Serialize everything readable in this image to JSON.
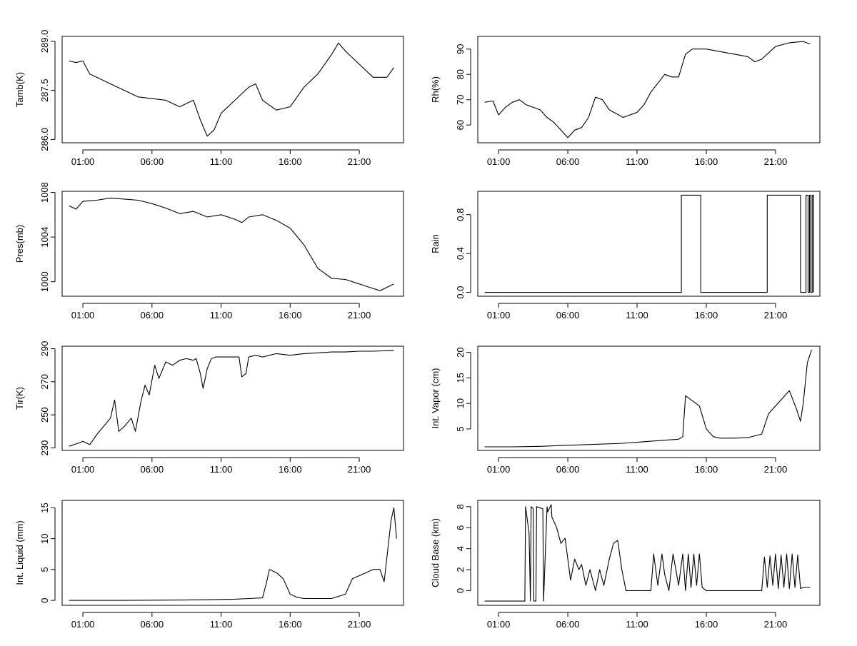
{
  "figure": {
    "description_none": ""
  },
  "chart_data": [
    {
      "type": "line",
      "ylabel": "Tamb(K)",
      "xlabel": "",
      "x_unit": "hours",
      "x_ticks": [
        1,
        6,
        11,
        16,
        21
      ],
      "x_tick_labels": [
        "01:00",
        "06:00",
        "11:00",
        "16:00",
        "21:00"
      ],
      "xlim": [
        -0.5,
        24.2
      ],
      "ylim": [
        285.9,
        289.15
      ],
      "y_ticks": [
        286.0,
        287.5,
        289.0
      ],
      "y_tick_labels": [
        "286.0",
        "287.5",
        "289.0"
      ],
      "series": [
        {
          "name": "Tamb",
          "x": [
            0,
            0.5,
            1,
            1.5,
            2,
            3,
            4,
            5,
            6,
            7,
            8,
            9,
            9.5,
            10,
            10.5,
            11,
            12,
            13,
            13.5,
            14,
            15,
            16,
            17,
            18,
            19,
            19.5,
            20,
            21,
            22,
            23,
            23.5
          ],
          "values": [
            288.4,
            288.35,
            288.4,
            288.0,
            287.9,
            287.7,
            287.5,
            287.3,
            287.25,
            287.2,
            287.0,
            287.2,
            286.6,
            286.1,
            286.3,
            286.8,
            287.2,
            287.6,
            287.7,
            287.2,
            286.9,
            287.0,
            287.6,
            288.0,
            288.6,
            288.95,
            288.7,
            288.3,
            287.9,
            287.9,
            288.2
          ]
        }
      ]
    },
    {
      "type": "line",
      "ylabel": "Rh(%)",
      "xlabel": "",
      "x_unit": "hours",
      "x_ticks": [
        1,
        6,
        11,
        16,
        21
      ],
      "x_tick_labels": [
        "01:00",
        "06:00",
        "11:00",
        "16:00",
        "21:00"
      ],
      "xlim": [
        -0.5,
        24.2
      ],
      "ylim": [
        53,
        95
      ],
      "y_ticks": [
        60,
        70,
        80,
        90
      ],
      "y_tick_labels": [
        "60",
        "70",
        "80",
        "90"
      ],
      "series": [
        {
          "name": "Rh",
          "x": [
            0,
            0.6,
            1,
            1.5,
            2,
            2.5,
            3,
            4,
            4.5,
            5,
            5.5,
            6,
            6.5,
            7,
            7.5,
            8,
            8.5,
            9,
            10,
            11,
            11.5,
            12,
            13,
            13.5,
            14,
            14.5,
            15,
            16,
            17,
            18,
            19,
            19.5,
            20,
            21,
            22,
            23,
            23.5
          ],
          "values": [
            69,
            69.5,
            64,
            67,
            69,
            70,
            68,
            66,
            63,
            61,
            58,
            55,
            58,
            59,
            63,
            71,
            70,
            66,
            63,
            65,
            68,
            73,
            80,
            79,
            79,
            88,
            90,
            90,
            89,
            88,
            87,
            85,
            86,
            91,
            92.5,
            93,
            92
          ]
        }
      ]
    },
    {
      "type": "line",
      "ylabel": "Pres(mb)",
      "xlabel": "",
      "x_unit": "hours",
      "x_ticks": [
        1,
        6,
        11,
        16,
        21
      ],
      "x_tick_labels": [
        "01:00",
        "06:00",
        "11:00",
        "16:00",
        "21:00"
      ],
      "xlim": [
        -0.5,
        24.2
      ],
      "ylim": [
        998.7,
        1008.1
      ],
      "y_ticks": [
        1000,
        1004,
        1008
      ],
      "y_tick_labels": [
        "1000",
        "1004",
        "1008"
      ],
      "series": [
        {
          "name": "Pres",
          "x": [
            0,
            0.5,
            1,
            2,
            3,
            4,
            5,
            6,
            7,
            8,
            9,
            10,
            11,
            12,
            12.5,
            13,
            14,
            15,
            16,
            17,
            18,
            19,
            20,
            21,
            22,
            22.5,
            23,
            23.5
          ],
          "values": [
            1006.8,
            1006.5,
            1007.2,
            1007.3,
            1007.5,
            1007.4,
            1007.3,
            1007.0,
            1006.6,
            1006.1,
            1006.3,
            1005.8,
            1006.0,
            1005.6,
            1005.3,
            1005.8,
            1006.0,
            1005.5,
            1004.8,
            1003.3,
            1001.2,
            1000.3,
            1000.2,
            999.8,
            999.4,
            999.2,
            999.5,
            999.8
          ]
        }
      ]
    },
    {
      "type": "line",
      "ylabel": "Rain",
      "xlabel": "",
      "x_unit": "hours",
      "x_ticks": [
        1,
        6,
        11,
        16,
        21
      ],
      "x_tick_labels": [
        "01:00",
        "06:00",
        "11:00",
        "16:00",
        "21:00"
      ],
      "xlim": [
        -0.5,
        24.2
      ],
      "ylim": [
        -0.04,
        1.04
      ],
      "y_ticks": [
        0.0,
        0.4,
        0.8
      ],
      "y_tick_labels": [
        "0.0",
        "0.4",
        "0.8"
      ],
      "series": [
        {
          "name": "Rain",
          "x": [
            0,
            14.2,
            14.2,
            15.6,
            15.6,
            20.4,
            20.4,
            22.8,
            22.8,
            23.2,
            23.2,
            23.35,
            23.35,
            23.45,
            23.45,
            23.55,
            23.55,
            23.65,
            23.65,
            23.75,
            23.75
          ],
          "values": [
            0,
            0,
            1,
            1,
            0,
            0,
            1,
            1,
            0,
            0,
            1,
            1,
            0,
            0,
            1,
            1,
            0,
            0,
            1,
            1,
            0
          ]
        }
      ]
    },
    {
      "type": "line",
      "ylabel": "Tir(K)",
      "xlabel": "",
      "x_unit": "hours",
      "x_ticks": [
        1,
        6,
        11,
        16,
        21
      ],
      "x_tick_labels": [
        "01:00",
        "06:00",
        "11:00",
        "16:00",
        "21:00"
      ],
      "xlim": [
        -0.5,
        24.2
      ],
      "ylim": [
        228.5,
        291.5
      ],
      "y_ticks": [
        230,
        250,
        270,
        290
      ],
      "y_tick_labels": [
        "230",
        "250",
        "270",
        "290"
      ],
      "series": [
        {
          "name": "Tir",
          "x": [
            0,
            0.7,
            1,
            1.5,
            2,
            2.5,
            3,
            3.3,
            3.6,
            4,
            4.5,
            4.8,
            5.2,
            5.5,
            5.8,
            6.2,
            6.5,
            7,
            7.5,
            8,
            8.5,
            9,
            9.2,
            9.5,
            9.7,
            10,
            10.3,
            10.6,
            11,
            11.5,
            12,
            12.3,
            12.5,
            12.8,
            13,
            13.5,
            14,
            14.5,
            15,
            16,
            17,
            18,
            19,
            20,
            21,
            22,
            23,
            23.5
          ],
          "values": [
            231,
            233,
            234,
            232,
            238,
            243,
            248,
            259,
            240,
            243,
            248,
            240,
            258,
            268,
            262,
            280,
            272,
            282,
            280,
            283,
            284,
            283,
            284,
            275,
            266,
            278,
            284,
            285,
            285,
            285,
            285,
            285,
            273,
            275,
            285,
            286,
            285,
            286,
            287,
            286,
            287,
            287.5,
            288,
            288,
            288.5,
            288.5,
            288.8,
            289
          ]
        }
      ]
    },
    {
      "type": "line",
      "ylabel": "Int. Vapor (cm)",
      "xlabel": "",
      "x_unit": "hours",
      "x_ticks": [
        1,
        6,
        11,
        16,
        21
      ],
      "x_tick_labels": [
        "01:00",
        "06:00",
        "11:00",
        "16:00",
        "21:00"
      ],
      "xlim": [
        -0.5,
        24.2
      ],
      "ylim": [
        0.8,
        21.2
      ],
      "y_ticks": [
        5,
        10,
        15,
        20
      ],
      "y_tick_labels": [
        "5",
        "10",
        "15",
        "20"
      ],
      "series": [
        {
          "name": "Int. Vapor",
          "x": [
            0,
            2,
            4,
            6,
            8,
            10,
            12,
            13,
            14,
            14.3,
            14.5,
            15,
            15.5,
            16,
            16.5,
            17,
            18,
            19,
            20,
            20.5,
            21,
            21.5,
            22,
            22.5,
            22.8,
            23,
            23.3,
            23.6
          ],
          "values": [
            1.5,
            1.5,
            1.6,
            1.8,
            2.0,
            2.2,
            2.6,
            2.8,
            3.0,
            3.5,
            11.5,
            10.5,
            9.5,
            5.0,
            3.5,
            3.2,
            3.2,
            3.3,
            4.0,
            8.0,
            9.5,
            11.0,
            12.5,
            9.0,
            6.5,
            10.0,
            18.0,
            20.5
          ]
        }
      ]
    },
    {
      "type": "line",
      "ylabel": "Int. Liquid (mm)",
      "xlabel": "",
      "x_unit": "hours",
      "x_ticks": [
        1,
        6,
        11,
        16,
        21
      ],
      "x_tick_labels": [
        "01:00",
        "06:00",
        "11:00",
        "16:00",
        "21:00"
      ],
      "xlim": [
        -0.5,
        24.2
      ],
      "ylim": [
        -0.8,
        16.2
      ],
      "y_ticks": [
        0,
        5,
        10,
        15
      ],
      "y_tick_labels": [
        "0",
        "5",
        "10",
        "15"
      ],
      "series": [
        {
          "name": "Int. Liquid",
          "x": [
            0,
            4,
            8,
            10,
            12,
            13,
            14,
            14.3,
            14.5,
            15,
            15.5,
            16,
            16.5,
            17,
            18,
            19,
            20,
            20.5,
            21,
            21.5,
            22,
            22.5,
            22.8,
            23,
            23.3,
            23.5,
            23.7
          ],
          "values": [
            0,
            0,
            0.05,
            0.1,
            0.2,
            0.3,
            0.4,
            3.0,
            5.0,
            4.5,
            3.5,
            1.0,
            0.5,
            0.3,
            0.3,
            0.3,
            1.0,
            3.5,
            4.0,
            4.5,
            5.0,
            5.0,
            3.0,
            7.0,
            13.0,
            15.0,
            10.0
          ]
        }
      ]
    },
    {
      "type": "line",
      "ylabel": "Cloud Base (km)",
      "xlabel": "",
      "x_unit": "hours",
      "x_ticks": [
        1,
        6,
        11,
        16,
        21
      ],
      "x_tick_labels": [
        "01:00",
        "06:00",
        "11:00",
        "16:00",
        "21:00"
      ],
      "xlim": [
        -0.5,
        24.2
      ],
      "ylim": [
        -1.4,
        8.6
      ],
      "y_ticks": [
        0,
        2,
        4,
        6,
        8
      ],
      "y_tick_labels": [
        "0",
        "2",
        "4",
        "6",
        "8"
      ],
      "series": [
        {
          "name": "Cloud Base",
          "x": [
            0,
            2.9,
            2.95,
            3.0,
            3.2,
            3.3,
            3.35,
            3.5,
            3.55,
            3.7,
            3.75,
            4.2,
            4.25,
            4.5,
            4.55,
            4.8,
            4.85,
            5.2,
            5.5,
            5.8,
            6.0,
            6.2,
            6.5,
            6.8,
            7.0,
            7.3,
            7.6,
            8.0,
            8.3,
            8.6,
            9.0,
            9.3,
            9.6,
            9.9,
            10.2,
            10.5,
            11.0,
            12.0,
            12.2,
            12.5,
            12.8,
            13.0,
            13.3,
            13.6,
            14.0,
            14.3,
            14.5,
            14.7,
            14.9,
            15.1,
            15.3,
            15.5,
            15.7,
            16.0,
            18.0,
            20.0,
            20.2,
            20.4,
            20.6,
            20.8,
            21.0,
            21.2,
            21.4,
            21.6,
            21.8,
            22.0,
            22.2,
            22.4,
            22.6,
            22.8,
            23.0,
            23.5
          ],
          "values": [
            -1,
            -1,
            8.0,
            7.5,
            5.5,
            -1,
            8.0,
            7.8,
            -1,
            -1,
            8.0,
            7.8,
            -1,
            8.0,
            7.5,
            8.2,
            7.0,
            6.0,
            4.5,
            5.0,
            3.0,
            1.0,
            3.0,
            2.0,
            2.5,
            0.5,
            2.0,
            0,
            2.0,
            0.5,
            3.0,
            4.5,
            4.8,
            2.0,
            0,
            0,
            0,
            0,
            3.5,
            0.5,
            3.5,
            1.5,
            0,
            3.5,
            0.5,
            3.5,
            0,
            3.5,
            0.3,
            3.5,
            0.5,
            3.5,
            0.3,
            0,
            0,
            0,
            3.2,
            0.3,
            3.3,
            0.5,
            3.5,
            0.2,
            3.4,
            0.3,
            3.5,
            0.2,
            3.5,
            0.3,
            3.4,
            0.2,
            0.3,
            0.3
          ]
        }
      ]
    }
  ]
}
